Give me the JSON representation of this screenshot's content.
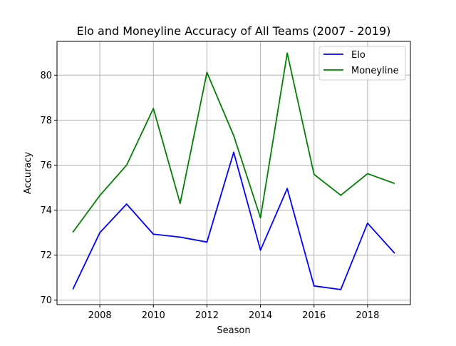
{
  "chart_data": {
    "type": "line",
    "title": "Elo and Moneyline Accuracy of All Teams (2007 - 2019)",
    "xlabel": "Season",
    "ylabel": "Accuracy",
    "x": [
      2007,
      2008,
      2009,
      2010,
      2011,
      2012,
      2013,
      2014,
      2015,
      2016,
      2017,
      2018,
      2019
    ],
    "xlim": [
      2006.4,
      2019.6
    ],
    "ylim": [
      69.8,
      81.5
    ],
    "x_ticks": [
      2008,
      2010,
      2012,
      2014,
      2016,
      2018
    ],
    "y_ticks": [
      70,
      72,
      74,
      76,
      78,
      80
    ],
    "grid": true,
    "legend_position": "top-right",
    "series": [
      {
        "name": "Elo",
        "color": "#0000ff",
        "values": [
          70.5,
          73.0,
          74.27,
          72.93,
          72.8,
          72.58,
          76.57,
          72.22,
          74.96,
          70.63,
          70.47,
          73.42,
          72.1
        ]
      },
      {
        "name": "Moneyline",
        "color": "#008000",
        "values": [
          73.03,
          74.65,
          76.0,
          78.52,
          74.3,
          80.12,
          77.31,
          73.66,
          80.98,
          75.59,
          74.66,
          75.62,
          75.19
        ]
      }
    ]
  }
}
